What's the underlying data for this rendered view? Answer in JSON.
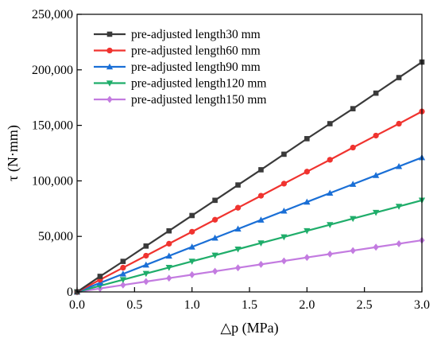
{
  "chart_data": {
    "type": "line",
    "xlabel": "△p (MPa)",
    "ylabel": "τ (N·mm)",
    "xlim": [
      0,
      3.0
    ],
    "ylim": [
      0,
      250000
    ],
    "xticks": [
      0,
      0.5,
      1.0,
      1.5,
      2.0,
      2.5,
      3.0
    ],
    "xtick_labels": [
      "0.0",
      "0.5",
      "1.0",
      "1.5",
      "2.0",
      "2.5",
      "3.0"
    ],
    "yticks": [
      0,
      50000,
      100000,
      150000,
      200000,
      250000
    ],
    "ytick_labels": [
      "0",
      "50,000",
      "100,000",
      "150,000",
      "200,000",
      "250,000"
    ],
    "grid": false,
    "legend_position": "top-left",
    "x": [
      0,
      0.2,
      0.4,
      0.6,
      0.8,
      1.0,
      1.2,
      1.4,
      1.6,
      1.8,
      2.0,
      2.2,
      2.4,
      2.6,
      2.8,
      3.0
    ],
    "series": [
      {
        "name": "pre-adjusted length30 mm",
        "color": "#3a3a3a",
        "marker": "square",
        "values": [
          0,
          14000,
          27500,
          41300,
          55000,
          68800,
          82500,
          96300,
          110000,
          124000,
          138000,
          151500,
          165000,
          179000,
          193000,
          207000
        ]
      },
      {
        "name": "pre-adjusted length60 mm",
        "color": "#f0332f",
        "marker": "circle",
        "values": [
          0,
          11000,
          21800,
          32600,
          43400,
          54200,
          65000,
          75800,
          86600,
          97500,
          108300,
          119000,
          130000,
          140800,
          151500,
          162500
        ]
      },
      {
        "name": "pre-adjusted length90 mm",
        "color": "#1a6fd6",
        "marker": "triangle-up",
        "values": [
          0,
          8100,
          16200,
          24300,
          32400,
          40500,
          48600,
          56700,
          64800,
          72900,
          81000,
          89000,
          97000,
          105000,
          113000,
          121000
        ]
      },
      {
        "name": "pre-adjusted length120 mm",
        "color": "#1fad6a",
        "marker": "triangle-down",
        "values": [
          0,
          5500,
          11000,
          16500,
          22000,
          27500,
          33000,
          38500,
          44000,
          49500,
          55000,
          60500,
          66000,
          71500,
          77000,
          82500
        ]
      },
      {
        "name": "pre-adjusted length150 mm",
        "color": "#c37be0",
        "marker": "diamond",
        "values": [
          0,
          3100,
          6200,
          9300,
          12400,
          15500,
          18600,
          21700,
          24800,
          27900,
          31000,
          34100,
          37200,
          40300,
          43400,
          46500
        ]
      }
    ]
  }
}
